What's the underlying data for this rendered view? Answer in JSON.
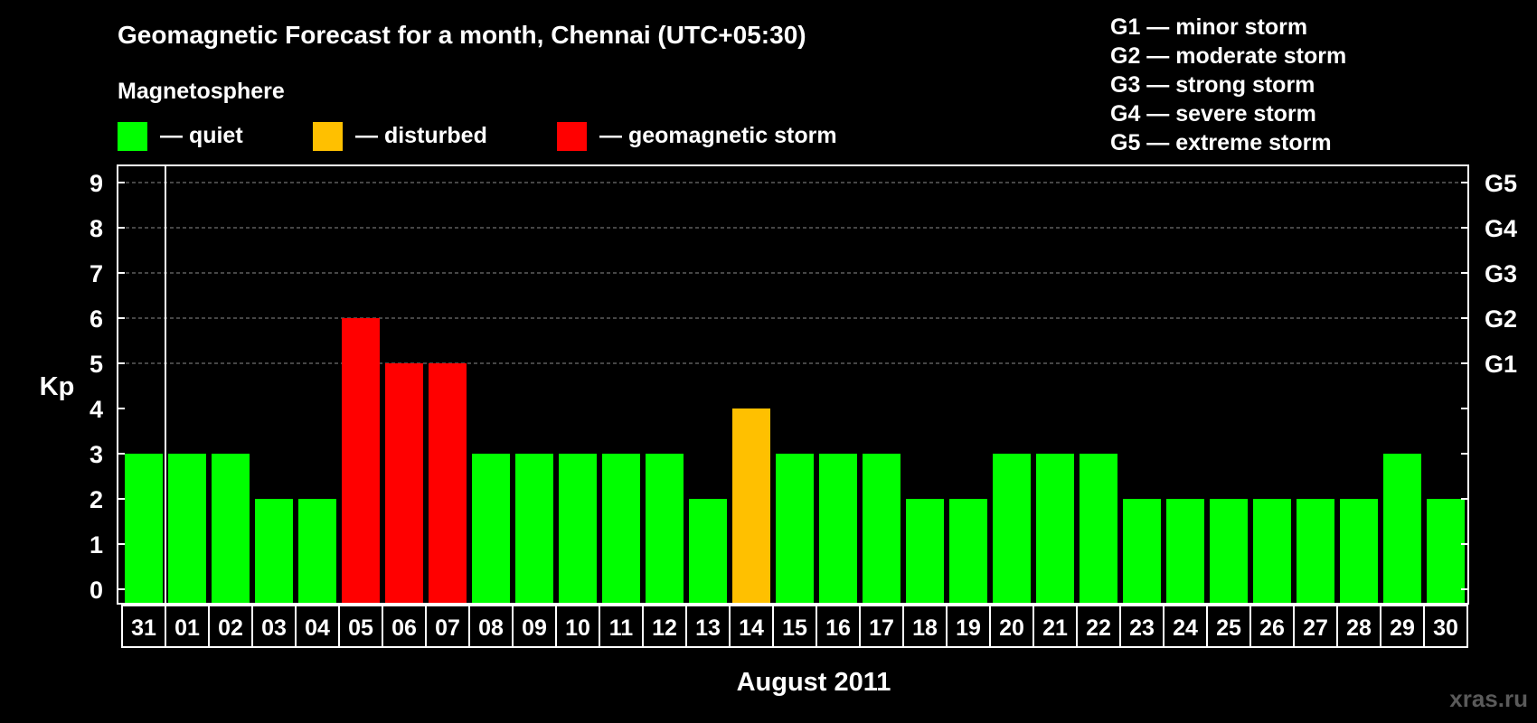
{
  "chart_data": {
    "type": "bar",
    "title": "Geomagnetic Forecast for a month, Chennai (UTC+05:30)",
    "legend_title": "Magnetosphere",
    "legend": [
      {
        "key": "quiet",
        "label": "— quiet",
        "color": "#00ff00"
      },
      {
        "key": "disturbed",
        "label": "— disturbed",
        "color": "#ffc000"
      },
      {
        "key": "storm",
        "label": "— geomagnetic storm",
        "color": "#ff0000"
      }
    ],
    "storm_scale": [
      "G1 — minor storm",
      "G2 — moderate storm",
      "G3 — strong storm",
      "G4 — severe storm",
      "G5 — extreme storm"
    ],
    "ylabel": "Kp",
    "xlabel": "August 2011",
    "ylim": [
      0,
      9
    ],
    "yticks": [
      "0",
      "1",
      "2",
      "3",
      "4",
      "5",
      "6",
      "7",
      "8",
      "9"
    ],
    "right_axis": [
      {
        "level": 5,
        "label": "G1"
      },
      {
        "level": 6,
        "label": "G2"
      },
      {
        "level": 7,
        "label": "G3"
      },
      {
        "level": 8,
        "label": "G4"
      },
      {
        "level": 9,
        "label": "G5"
      }
    ],
    "categories": [
      "31",
      "01",
      "02",
      "03",
      "04",
      "05",
      "06",
      "07",
      "08",
      "09",
      "10",
      "11",
      "12",
      "13",
      "14",
      "15",
      "16",
      "17",
      "18",
      "19",
      "20",
      "21",
      "22",
      "23",
      "24",
      "25",
      "26",
      "27",
      "28",
      "29",
      "30"
    ],
    "values": [
      3,
      3,
      3,
      2,
      2,
      6,
      5,
      5,
      3,
      3,
      3,
      3,
      3,
      2,
      4,
      3,
      3,
      3,
      2,
      2,
      3,
      3,
      3,
      2,
      2,
      2,
      2,
      2,
      2,
      3,
      2
    ],
    "thresholds": {
      "disturbed": 4,
      "storm": 5
    },
    "grid": true
  },
  "watermark": "xras.ru"
}
